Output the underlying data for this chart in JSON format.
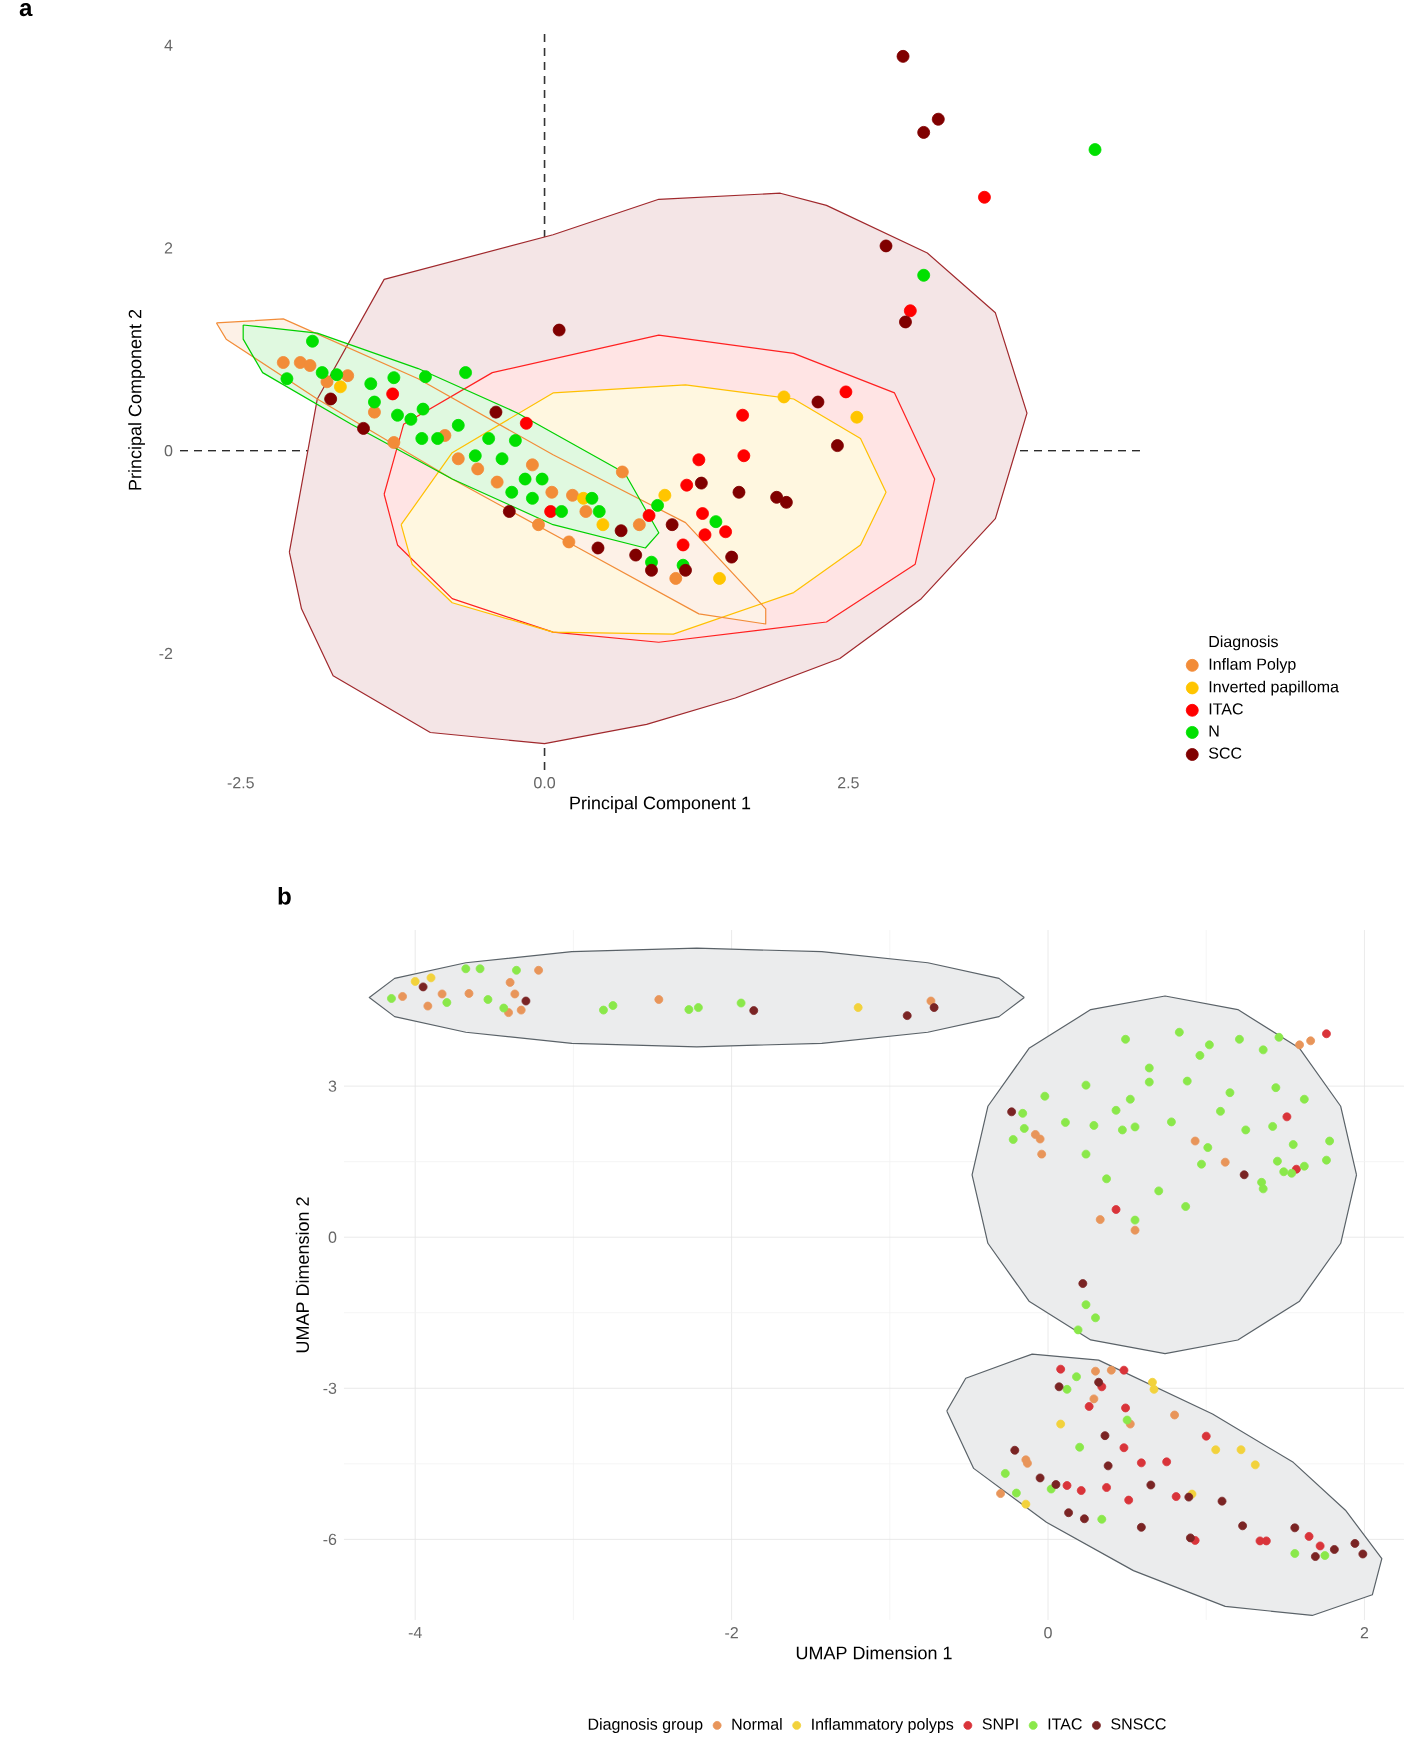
{
  "chart_data": [
    {
      "type": "scatter",
      "title": "a",
      "xlabel": "Principal Component 1",
      "ylabel": "Principal Component 2",
      "legend_title": "Diagnosis",
      "xlim": [
        -3.0,
        4.9
      ],
      "ylim": [
        -3.15,
        4.15
      ],
      "xticks": [
        -2.5,
        {
          "value": 0,
          "label": "0.0"
        },
        2.5
      ],
      "yticks": [
        -2,
        0,
        2,
        4
      ],
      "legend": "right",
      "marker": "circle",
      "ref_lines": [
        {
          "axis": "x",
          "value": 0,
          "color": "#333333",
          "line_style": "dashed"
        },
        {
          "axis": "y",
          "value": 0,
          "color": "#2b2b2b",
          "line_style": "dashed"
        }
      ],
      "series": [
        {
          "type": "area",
          "marker": "none",
          "color": "#a0282c",
          "x": [
            -2.1,
            -2.0,
            -1.74,
            -0.94,
            0.0,
            0.84,
            1.57,
            2.43,
            3.1,
            3.71,
            3.97,
            3.71,
            3.15,
            2.32,
            1.94,
            0.94,
            0.07,
            -1.32,
            -1.87,
            -2.1
          ],
          "values": [
            -1.0,
            -1.56,
            -2.22,
            -2.78,
            -2.89,
            -2.7,
            -2.44,
            -2.05,
            -1.46,
            -0.67,
            0.37,
            1.36,
            1.95,
            2.42,
            2.54,
            2.48,
            2.13,
            1.69,
            0.51,
            -1.0
          ]
        },
        {
          "type": "area",
          "marker": "none",
          "color": "#ff2020",
          "x": [
            -1.32,
            -1.21,
            -0.76,
            0.07,
            0.94,
            2.32,
            3.05,
            3.21,
            2.88,
            2.05,
            0.94,
            -0.43,
            -1.16,
            -1.32
          ],
          "values": [
            -0.43,
            -0.93,
            -1.46,
            -1.79,
            -1.89,
            -1.69,
            -1.12,
            -0.28,
            0.57,
            0.96,
            1.14,
            0.77,
            0.26,
            -0.43
          ]
        },
        {
          "type": "area",
          "marker": "none",
          "color": "#ffc000",
          "x": [
            -1.18,
            -1.09,
            -0.76,
            0.07,
            1.06,
            2.05,
            2.6,
            2.81,
            2.6,
            2.05,
            1.16,
            0.07,
            -0.76,
            -1.18
          ],
          "values": [
            -0.73,
            -1.12,
            -1.5,
            -1.79,
            -1.81,
            -1.4,
            -0.93,
            -0.41,
            0.12,
            0.51,
            0.65,
            0.57,
            -0.02,
            -0.73
          ]
        },
        {
          "type": "area",
          "marker": "none",
          "color": "#f28c38",
          "x": [
            -2.7,
            -2.15,
            -1.04,
            0.07,
            1.16,
            1.82,
            1.82,
            1.27,
            0.28,
            -0.76,
            -1.87,
            -2.62,
            -2.7
          ],
          "values": [
            1.26,
            1.3,
            0.71,
            -0.04,
            -0.71,
            -1.56,
            -1.71,
            -1.61,
            -0.96,
            -0.28,
            0.51,
            1.1,
            1.26
          ]
        },
        {
          "type": "area",
          "marker": "none",
          "color": "#00d000",
          "x": [
            -2.48,
            -1.87,
            -1.04,
            -0.22,
            0.66,
            0.94,
            0.83,
            0.07,
            -0.76,
            -1.59,
            -2.32,
            -2.48,
            -2.48
          ],
          "values": [
            1.24,
            1.16,
            0.81,
            0.37,
            -0.22,
            -0.81,
            -0.96,
            -0.73,
            -0.28,
            0.26,
            0.77,
            1.1,
            1.24
          ]
        },
        {
          "name": "Inflam Polyp",
          "color": "#f28c38",
          "x": [
            -2.15,
            -2.01,
            -1.93,
            -1.79,
            -1.62,
            -1.4,
            -1.24,
            -0.82,
            -0.71,
            -0.55,
            -0.39,
            -0.1,
            -0.05,
            0.06,
            0.23,
            0.34,
            0.2,
            0.64,
            0.78,
            0.83,
            1.08
          ],
          "values": [
            0.87,
            0.87,
            0.84,
            0.68,
            0.74,
            0.38,
            0.08,
            0.15,
            -0.08,
            -0.18,
            -0.31,
            -0.14,
            -0.73,
            -0.41,
            -0.44,
            -0.6,
            -0.9,
            -0.21,
            -0.73,
            null,
            -1.26
          ]
        },
        {
          "name": "Inverted papilloma",
          "color": "#ffc500",
          "x": [
            -1.68,
            0.32,
            0.99,
            0.48,
            1.44,
            1.97,
            2.57
          ],
          "values": [
            0.63,
            -0.47,
            -0.44,
            -0.73,
            -1.26,
            0.53,
            0.33
          ]
        },
        {
          "name": "ITAC",
          "color": "#ff0000",
          "x": [
            -1.25,
            -0.15,
            0.05,
            0.86,
            1.14,
            1.17,
            1.27,
            1.32,
            1.49,
            1.63,
            1.64,
            1.51,
            1.3,
            2.48,
            3.01,
            3.62
          ],
          "values": [
            0.56,
            0.27,
            -0.6,
            -0.64,
            -0.93,
            -0.34,
            -0.09,
            -0.83,
            -0.8,
            0.35,
            -0.05,
            null,
            -0.62,
            0.58,
            1.38,
            2.5
          ]
        },
        {
          "name": "N",
          "color": "#00e000",
          "x": [
            -1.91,
            -2.12,
            -1.83,
            -1.71,
            -1.43,
            -1.24,
            -0.98,
            -0.65,
            -1.4,
            -1.21,
            -1.1,
            -1.0,
            -1.01,
            -0.88,
            -0.71,
            -0.46,
            -0.57,
            -0.35,
            -0.24,
            -0.27,
            -0.16,
            -0.02,
            -0.1,
            0.14,
            0.39,
            0.45,
            0.93,
            1.41,
            0.88,
            1.14,
            3.12,
            4.53
          ],
          "values": [
            1.08,
            0.71,
            0.77,
            0.75,
            0.66,
            0.72,
            0.73,
            0.77,
            0.48,
            0.35,
            0.31,
            0.41,
            0.12,
            0.12,
            0.25,
            0.12,
            -0.05,
            -0.08,
            0.1,
            -0.41,
            -0.28,
            -0.28,
            -0.47,
            -0.6,
            -0.47,
            -0.6,
            -0.54,
            -0.7,
            -1.1,
            -1.13,
            1.73,
            2.97
          ]
        },
        {
          "name": "SCC",
          "color": "#800000",
          "x": [
            0.12,
            -1.76,
            -1.49,
            -0.4,
            -0.29,
            0.63,
            0.44,
            0.75,
            0.88,
            1.05,
            1.16,
            1.29,
            1.6,
            1.54,
            1.91,
            2.95,
            3.24,
            3.12,
            2.81,
            2.97,
            2.25,
            2.41,
            1.99
          ],
          "values": [
            1.19,
            0.51,
            0.22,
            0.38,
            -0.6,
            -0.79,
            -0.96,
            -1.03,
            -1.18,
            -0.73,
            -1.18,
            -0.32,
            -0.41,
            -1.05,
            -0.46,
            3.89,
            3.27,
            3.14,
            2.02,
            1.27,
            0.48,
            0.05,
            -0.51
          ]
        }
      ]
    },
    {
      "type": "scatter",
      "title": "b",
      "xlabel": "UMAP Dimension 1",
      "ylabel": "UMAP Dimension 2",
      "legend_title": "Diagnosis group",
      "xlim": [
        -4.45,
        2.25
      ],
      "ylim": [
        -7.6,
        6.1
      ],
      "xticks": [
        -4,
        -2,
        0,
        2
      ],
      "yticks": [
        -6,
        -3,
        0,
        3
      ],
      "grid": true,
      "legend": "bottom",
      "marker": "circle",
      "series": [
        {
          "type": "area",
          "marker": "none",
          "color": "#5a6268",
          "x": [
            -0.15,
            -0.31,
            -0.76,
            -1.43,
            -2.22,
            -3.01,
            -3.68,
            -4.13,
            -4.29,
            -4.13,
            -3.68,
            -3.01,
            -2.22,
            -1.43,
            -0.76,
            -0.31,
            -0.15
          ],
          "values": [
            4.76,
            5.14,
            5.45,
            5.67,
            5.74,
            5.67,
            5.45,
            5.14,
            4.76,
            4.38,
            4.07,
            3.85,
            3.78,
            3.85,
            4.07,
            4.38,
            4.76
          ]
        },
        {
          "type": "area",
          "marker": "none",
          "color": "#5a6268",
          "x": [
            1.95,
            1.85,
            1.59,
            1.2,
            0.74,
            0.27,
            -0.12,
            -0.38,
            -0.48,
            -0.38,
            -0.12,
            0.27,
            0.74,
            1.2,
            1.59,
            1.85,
            1.95
          ],
          "values": [
            1.24,
            2.6,
            3.75,
            4.52,
            4.79,
            4.52,
            3.75,
            2.6,
            1.24,
            -0.12,
            -1.27,
            -2.04,
            -2.31,
            -2.04,
            -1.27,
            -0.12,
            1.24
          ]
        },
        {
          "type": "area",
          "marker": "none",
          "color": "#5a6268",
          "x": [
            -0.64,
            -0.52,
            -0.1,
            0.32,
            1.04,
            1.55,
            1.88,
            2.11,
            2.05,
            1.67,
            1.12,
            0.54,
            -0.01,
            -0.47,
            -0.64
          ],
          "values": [
            -3.45,
            -2.8,
            -2.32,
            -2.44,
            -3.51,
            -4.47,
            -5.42,
            -6.38,
            -7.1,
            -7.51,
            -7.33,
            -6.62,
            -5.66,
            -4.59,
            -3.45
          ]
        },
        {
          "name": "Normal",
          "color": "#e8955a",
          "x": [
            -4.08,
            -3.92,
            -3.83,
            -3.66,
            -3.41,
            -3.33,
            -3.4,
            -3.37,
            -3.22,
            -2.46,
            -0.74,
            -0.71,
            -0.08,
            -0.05,
            -0.04,
            0.93,
            1.12,
            0.33,
            0.55,
            1.59,
            1.66,
            0.3,
            0.4,
            0.29,
            0.52,
            0.8,
            -0.14,
            -0.13,
            -0.3
          ],
          "values": [
            4.78,
            4.59,
            4.83,
            4.84,
            4.46,
            4.51,
            5.06,
            4.83,
            5.3,
            4.72,
            4.69,
            null,
            2.04,
            1.95,
            1.65,
            1.91,
            1.49,
            0.35,
            0.14,
            3.82,
            3.9,
            -2.66,
            -2.64,
            -3.21,
            -3.71,
            -3.53,
            -4.42,
            -4.49,
            -5.09
          ]
        },
        {
          "name": "Inflammatory polyps",
          "color": "#f2d23c",
          "x": [
            -4.0,
            -3.9,
            -1.2,
            0.66,
            0.67,
            0.08,
            1.06,
            1.22,
            1.31,
            -0.14,
            0.91
          ],
          "values": [
            5.08,
            5.15,
            4.56,
            -2.88,
            -3.02,
            -3.71,
            -4.22,
            -4.22,
            -4.52,
            -5.3,
            -5.1
          ]
        },
        {
          "name": "SNPI",
          "color": "#d9343a",
          "x": [
            1.51,
            1.57,
            0.43,
            1.76,
            0.08,
            0.48,
            0.34,
            0.26,
            0.49,
            0.48,
            1.0,
            0.59,
            0.75,
            0.12,
            0.21,
            0.37,
            0.51,
            0.81,
            0.93,
            1.34,
            1.38,
            1.65,
            1.72
          ],
          "values": [
            2.39,
            1.35,
            0.55,
            4.04,
            -2.62,
            -2.64,
            -2.97,
            -3.36,
            -3.39,
            -4.18,
            -3.95,
            -4.48,
            -4.46,
            -4.93,
            -5.03,
            -4.97,
            -5.22,
            -5.15,
            -6.02,
            -6.03,
            -6.03,
            -5.94,
            -6.13
          ]
        },
        {
          "name": "ITAC",
          "color": "#8ae84a",
          "x": [
            -4.15,
            -3.8,
            -3.68,
            -3.59,
            -3.54,
            -3.44,
            -3.36,
            -2.81,
            -2.75,
            -2.27,
            -2.21,
            -1.94,
            -0.16,
            -0.02,
            -0.15,
            -0.22,
            0.11,
            0.24,
            0.29,
            0.24,
            0.43,
            0.52,
            0.47,
            0.55,
            0.64,
            0.88,
            0.78,
            1.09,
            1.15,
            1.44,
            1.62,
            1.01,
            0.97,
            1.25,
            1.42,
            1.55,
            1.78,
            1.76,
            1.62,
            1.49,
            1.54,
            1.45,
            1.35,
            1.36,
            0.7,
            0.87,
            0.37,
            0.55,
            0.24,
            0.3,
            0.19,
            0.49,
            0.83,
            1.02,
            1.21,
            1.36,
            1.46,
            0.96,
            0.64,
            0.18,
            0.12,
            0.5,
            0.2,
            -0.27,
            -0.2,
            0.02,
            0.34,
            1.56,
            1.75
          ],
          "values": [
            4.74,
            4.66,
            5.33,
            5.33,
            4.72,
            4.55,
            5.3,
            4.51,
            4.6,
            4.52,
            4.56,
            4.65,
            2.46,
            2.8,
            2.16,
            1.94,
            2.28,
            3.02,
            2.22,
            1.65,
            2.52,
            2.74,
            2.13,
            2.19,
            3.08,
            3.1,
            2.29,
            2.5,
            2.87,
            2.97,
            2.74,
            1.78,
            1.45,
            2.13,
            2.2,
            1.84,
            1.91,
            1.53,
            1.41,
            1.3,
            1.27,
            1.51,
            1.09,
            0.96,
            0.92,
            0.61,
            1.16,
            0.34,
            -1.34,
            -1.6,
            -1.84,
            3.93,
            4.07,
            3.82,
            3.93,
            3.72,
            3.97,
            3.61,
            3.36,
            -2.77,
            -3.02,
            -3.63,
            -4.17,
            -4.69,
            -5.08,
            -5.0,
            -5.6,
            -6.28,
            -6.32
          ]
        },
        {
          "name": "SNSCC",
          "color": "#7a2424",
          "x": [
            -3.95,
            -3.3,
            -1.86,
            -0.89,
            -0.72,
            -0.23,
            1.24,
            0.22,
            0.07,
            0.32,
            0.36,
            0.38,
            -0.21,
            -0.05,
            0.05,
            0.65,
            0.89,
            1.1,
            0.13,
            0.23,
            0.59,
            1.23,
            0.9,
            1.56,
            1.81,
            1.94,
            1.99,
            1.69
          ],
          "values": [
            4.97,
            4.69,
            4.5,
            4.4,
            4.56,
            2.49,
            1.24,
            -0.92,
            -2.97,
            -2.88,
            -3.94,
            -4.54,
            -4.23,
            -4.78,
            -4.91,
            -4.92,
            -5.16,
            -5.24,
            -5.47,
            -5.59,
            -5.76,
            -5.73,
            -5.97,
            -5.77,
            -6.2,
            -6.08,
            -6.29,
            -6.34
          ]
        }
      ]
    }
  ]
}
